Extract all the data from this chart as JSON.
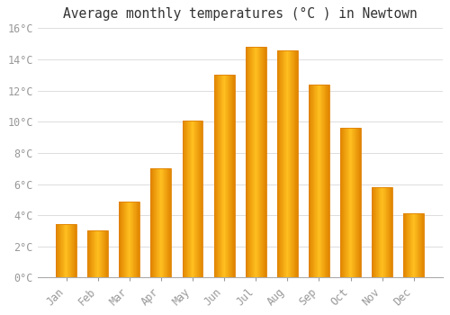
{
  "title": "Average monthly temperatures (°C ) in Newtown",
  "months": [
    "Jan",
    "Feb",
    "Mar",
    "Apr",
    "May",
    "Jun",
    "Jul",
    "Aug",
    "Sep",
    "Oct",
    "Nov",
    "Dec"
  ],
  "values": [
    3.4,
    3.0,
    4.9,
    7.0,
    10.1,
    13.0,
    14.8,
    14.6,
    12.4,
    9.6,
    5.8,
    4.1
  ],
  "bar_color": "#FFA500",
  "bar_edge_color": "#E08000",
  "bar_highlight": "#FFD060",
  "background_color": "#FFFFFF",
  "grid_color": "#DDDDDD",
  "text_color": "#999999",
  "ylim": [
    0,
    16
  ],
  "yticks": [
    0,
    2,
    4,
    6,
    8,
    10,
    12,
    14,
    16
  ],
  "bar_width": 0.65,
  "title_fontsize": 10.5,
  "tick_fontsize": 8.5
}
